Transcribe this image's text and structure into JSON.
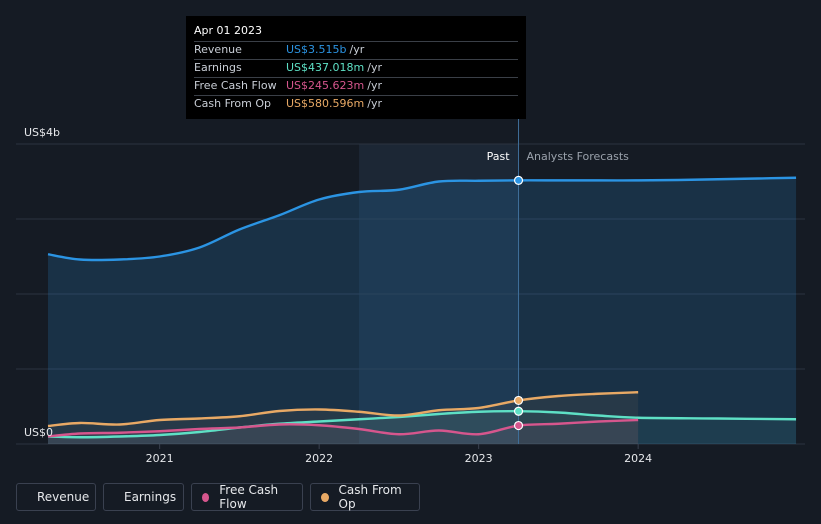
{
  "tooltip": {
    "date": "Apr 01 2023",
    "rows": [
      {
        "label": "Revenue",
        "value": "US$3.515b",
        "unit": "/yr",
        "color": "#2b94e3"
      },
      {
        "label": "Earnings",
        "value": "US$437.018m",
        "unit": "/yr",
        "color": "#5ee0c5"
      },
      {
        "label": "Free Cash Flow",
        "value": "US$245.623m",
        "unit": "/yr",
        "color": "#d6568d"
      },
      {
        "label": "Cash From Op",
        "value": "US$580.596m",
        "unit": "/yr",
        "color": "#e8a965"
      }
    ]
  },
  "legend": [
    {
      "label": "Revenue",
      "color": "#2b94e3"
    },
    {
      "label": "Earnings",
      "color": "#5ee0c5"
    },
    {
      "label": "Free Cash Flow",
      "color": "#d6568d"
    },
    {
      "label": "Cash From Op",
      "color": "#e8a965"
    }
  ],
  "chart_data": {
    "type": "line",
    "title": "",
    "y_axis_label_top": "US$4b",
    "y_axis_label_bottom": "US$0",
    "ylim": [
      0,
      4.0
    ],
    "xlim": [
      2020.3,
      2024.99
    ],
    "x_ticks": [
      {
        "value": 2021,
        "label": "2021"
      },
      {
        "value": 2022,
        "label": "2022"
      },
      {
        "value": 2023,
        "label": "2023"
      },
      {
        "value": 2024,
        "label": "2024"
      }
    ],
    "past_label": "Past",
    "forecast_label": "Analysts Forecasts",
    "divider_x": 2023.25,
    "shade_start_x": 2022.25,
    "series": [
      {
        "name": "Revenue",
        "color": "#2b94e3",
        "unit": "billions USD",
        "points": [
          [
            2020.3,
            2.53
          ],
          [
            2020.5,
            2.46
          ],
          [
            2020.75,
            2.46
          ],
          [
            2021.0,
            2.5
          ],
          [
            2021.25,
            2.62
          ],
          [
            2021.5,
            2.86
          ],
          [
            2021.75,
            3.05
          ],
          [
            2022.0,
            3.26
          ],
          [
            2022.25,
            3.36
          ],
          [
            2022.5,
            3.39
          ],
          [
            2022.75,
            3.5
          ],
          [
            2023.0,
            3.51
          ],
          [
            2023.25,
            3.515
          ],
          [
            2023.5,
            3.515
          ],
          [
            2023.75,
            3.515
          ],
          [
            2024.0,
            3.515
          ],
          [
            2024.25,
            3.52
          ],
          [
            2024.5,
            3.53
          ],
          [
            2024.75,
            3.54
          ],
          [
            2024.99,
            3.55
          ]
        ]
      },
      {
        "name": "Earnings",
        "color": "#5ee0c5",
        "unit": "billions USD",
        "points": [
          [
            2020.3,
            0.1
          ],
          [
            2020.5,
            0.09
          ],
          [
            2020.75,
            0.1
          ],
          [
            2021.0,
            0.12
          ],
          [
            2021.25,
            0.16
          ],
          [
            2021.5,
            0.22
          ],
          [
            2021.75,
            0.27
          ],
          [
            2022.0,
            0.3
          ],
          [
            2022.25,
            0.33
          ],
          [
            2022.5,
            0.36
          ],
          [
            2022.75,
            0.4
          ],
          [
            2023.0,
            0.43
          ],
          [
            2023.25,
            0.437
          ],
          [
            2023.5,
            0.42
          ],
          [
            2023.75,
            0.38
          ],
          [
            2024.0,
            0.35
          ],
          [
            2024.5,
            0.34
          ],
          [
            2024.99,
            0.33
          ]
        ]
      },
      {
        "name": "Free Cash Flow",
        "color": "#d6568d",
        "unit": "billions USD",
        "points": [
          [
            2020.3,
            0.1
          ],
          [
            2020.5,
            0.14
          ],
          [
            2020.75,
            0.15
          ],
          [
            2021.0,
            0.17
          ],
          [
            2021.25,
            0.2
          ],
          [
            2021.5,
            0.22
          ],
          [
            2021.75,
            0.26
          ],
          [
            2022.0,
            0.25
          ],
          [
            2022.25,
            0.2
          ],
          [
            2022.5,
            0.13
          ],
          [
            2022.75,
            0.18
          ],
          [
            2023.0,
            0.13
          ],
          [
            2023.25,
            0.246
          ],
          [
            2023.5,
            0.27
          ],
          [
            2023.75,
            0.3
          ],
          [
            2024.0,
            0.32
          ]
        ]
      },
      {
        "name": "Cash From Op",
        "color": "#e8a965",
        "unit": "billions USD",
        "points": [
          [
            2020.3,
            0.24
          ],
          [
            2020.5,
            0.28
          ],
          [
            2020.75,
            0.26
          ],
          [
            2021.0,
            0.32
          ],
          [
            2021.25,
            0.34
          ],
          [
            2021.5,
            0.37
          ],
          [
            2021.75,
            0.44
          ],
          [
            2022.0,
            0.46
          ],
          [
            2022.25,
            0.43
          ],
          [
            2022.5,
            0.38
          ],
          [
            2022.75,
            0.45
          ],
          [
            2023.0,
            0.48
          ],
          [
            2023.25,
            0.581
          ],
          [
            2023.5,
            0.64
          ],
          [
            2023.75,
            0.67
          ],
          [
            2024.0,
            0.69
          ]
        ]
      }
    ]
  }
}
